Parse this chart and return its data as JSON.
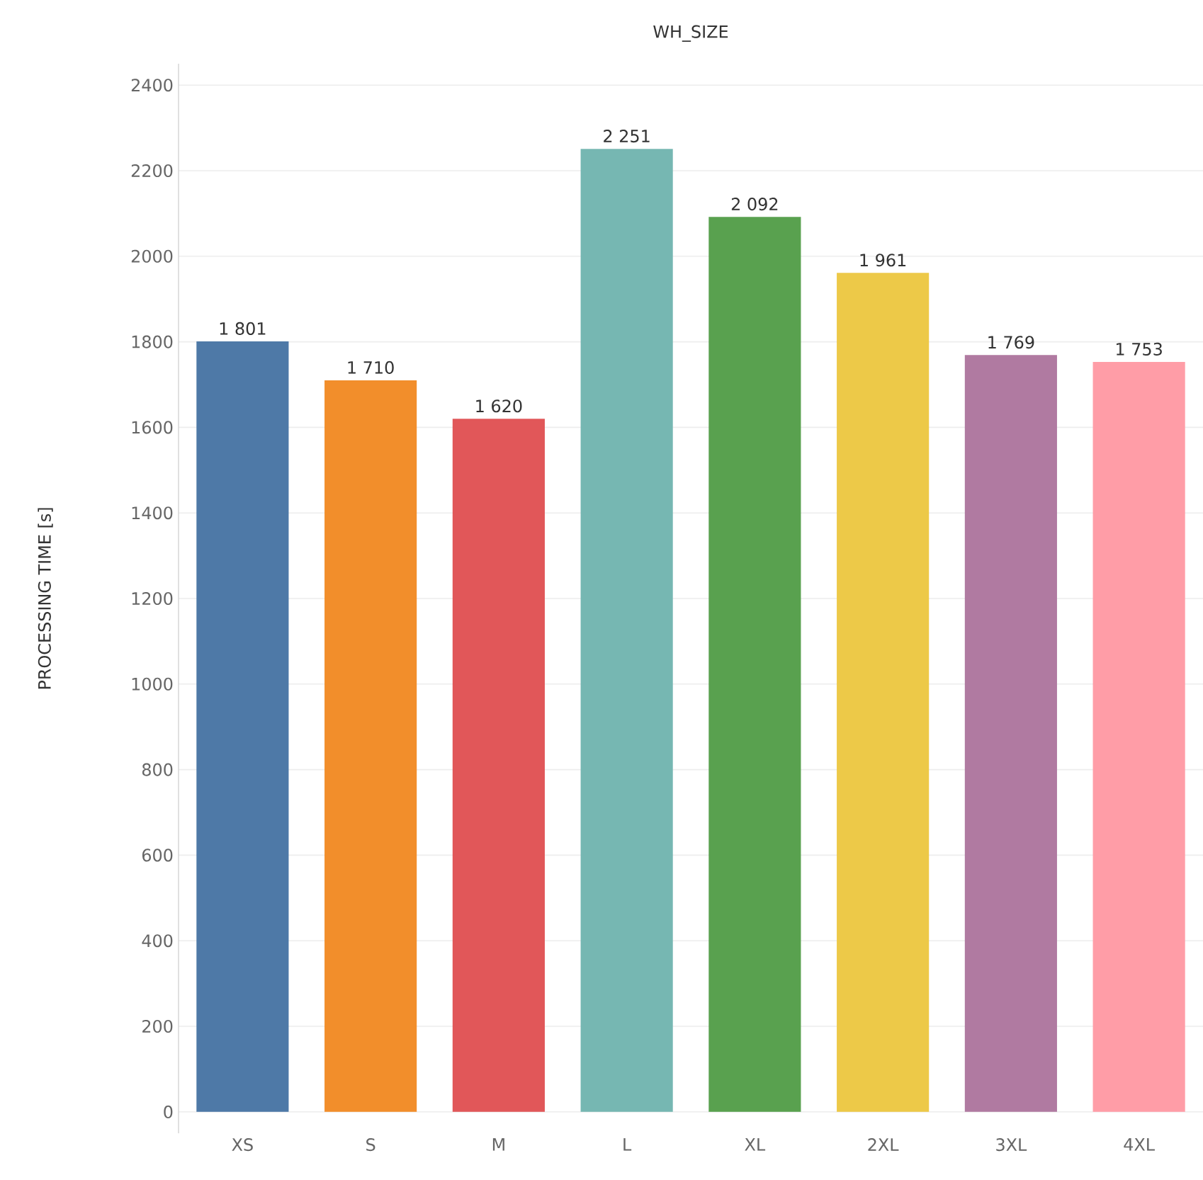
{
  "chart_data": {
    "type": "bar",
    "title": "WH_SIZE",
    "ylabel": "PROCESSING TIME [s]",
    "categories": [
      "XS",
      "S",
      "M",
      "L",
      "XL",
      "2XL",
      "3XL",
      "4XL"
    ],
    "values": [
      1801,
      1710,
      1620,
      2251,
      2092,
      1961,
      1769,
      1753
    ],
    "colors": [
      "#4e79a7",
      "#f28e2b",
      "#e15759",
      "#76b7b2",
      "#59a14f",
      "#edc948",
      "#b07aa1",
      "#ff9da7"
    ],
    "value_labels": [
      "1 801",
      "1 710",
      "1 620",
      "2 251",
      "2 092",
      "1 961",
      "1 769",
      "1 753"
    ],
    "ylim": [
      -50,
      2450
    ],
    "yticks": [
      0,
      200,
      400,
      600,
      800,
      1000,
      1200,
      1400,
      1600,
      1800,
      2000,
      2200,
      2400
    ],
    "grid": "y"
  }
}
